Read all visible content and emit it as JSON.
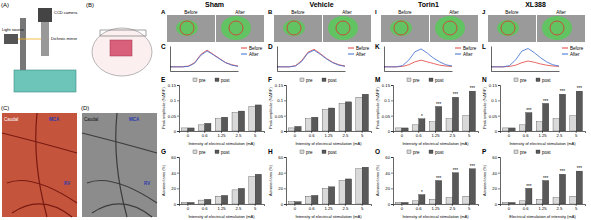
{
  "figure": {
    "setup": {
      "label": "(A)",
      "texts": [
        "CCD camera",
        "Dichroic mirror",
        "Light source"
      ]
    },
    "surgery": {
      "label": "(B)"
    },
    "photo_color": {
      "label": "(C)",
      "texts": [
        "Caudal",
        "MCA",
        "RV"
      ]
    },
    "photo_gray": {
      "label": "(D)",
      "texts": [
        "Caudal",
        "MCA",
        "RV"
      ]
    },
    "groups": [
      {
        "name": "Sham",
        "image_label": "A",
        "before": "Before",
        "after": "After"
      },
      {
        "name": "Vehicle",
        "image_label": "B",
        "before": "Before",
        "after": "After"
      },
      {
        "name": "Torin1",
        "image_label": "I",
        "before": "Before",
        "after": "After"
      },
      {
        "name": "XL388",
        "image_label": "J",
        "before": "Before",
        "after": "After"
      }
    ]
  },
  "chart_data": [
    {
      "type": "line",
      "title": "C",
      "x": [
        0,
        1,
        2,
        3,
        4,
        5,
        6,
        7,
        8,
        9,
        10,
        11
      ],
      "xlim": [
        0,
        11
      ],
      "ylim": [
        -1,
        5
      ],
      "tick_labels": false,
      "series": [
        {
          "name": "Before",
          "color": "#e0413c",
          "values": [
            0,
            0,
            0,
            0.2,
            1,
            3,
            4,
            3,
            2,
            1,
            0.5,
            0.2
          ]
        },
        {
          "name": "After",
          "color": "#3b6bd1",
          "values": [
            0,
            0,
            0,
            0.1,
            0.9,
            2.8,
            3.8,
            2.9,
            1.9,
            1,
            0.4,
            0.1
          ]
        }
      ]
    },
    {
      "type": "line",
      "title": "D",
      "x": [
        0,
        1,
        2,
        3,
        4,
        5,
        6,
        7,
        8,
        9,
        10,
        11
      ],
      "xlim": [
        0,
        11
      ],
      "ylim": [
        -1,
        5
      ],
      "tick_labels": false,
      "series": [
        {
          "name": "Before",
          "color": "#e0413c",
          "values": [
            0,
            0,
            0,
            0.3,
            1.5,
            3.5,
            4.2,
            3.2,
            2,
            1.1,
            0.5,
            0.2
          ]
        },
        {
          "name": "After",
          "color": "#3b6bd1",
          "values": [
            0,
            0,
            0,
            0.2,
            1.3,
            3.3,
            4,
            3,
            1.9,
            1,
            0.4,
            0.1
          ]
        }
      ]
    },
    {
      "type": "line",
      "title": "K",
      "x": [
        0,
        1,
        2,
        3,
        4,
        5,
        6,
        7,
        8,
        9,
        10,
        11
      ],
      "xlim": [
        0,
        11
      ],
      "ylim": [
        -1,
        5
      ],
      "tick_labels": false,
      "series": [
        {
          "name": "Before",
          "color": "#e0413c",
          "values": [
            0,
            0,
            0,
            0.1,
            0.5,
            1.2,
            1.6,
            1.2,
            0.8,
            0.4,
            0.2,
            0.1
          ]
        },
        {
          "name": "After",
          "color": "#3b6bd1",
          "values": [
            0,
            0,
            0,
            0.3,
            1.6,
            3.6,
            4.3,
            3.3,
            2.1,
            1.2,
            0.5,
            0.2
          ]
        }
      ]
    },
    {
      "type": "line",
      "title": "L",
      "x": [
        0,
        1,
        2,
        3,
        4,
        5,
        6,
        7,
        8,
        9,
        10,
        11
      ],
      "xlim": [
        0,
        11
      ],
      "ylim": [
        -1,
        5
      ],
      "tick_labels": false,
      "series": [
        {
          "name": "Before",
          "color": "#e0413c",
          "values": [
            0,
            0,
            0,
            0.1,
            0.4,
            1,
            1.4,
            1.1,
            0.7,
            0.4,
            0.2,
            0.1
          ]
        },
        {
          "name": "After",
          "color": "#3b6bd1",
          "values": [
            0,
            0,
            0,
            0.3,
            1.7,
            3.8,
            4.4,
            3.4,
            2.2,
            1.2,
            0.5,
            0.2
          ]
        }
      ]
    },
    {
      "type": "bar",
      "title": "E",
      "categories": [
        "0",
        "0.6",
        "1.25",
        "2.5",
        "5"
      ],
      "x_label": "Intensity of electrical stimulation (mA)",
      "y_label": "Peak amplitude (%ΔF/F)",
      "ylim": [
        0,
        0.15
      ],
      "yticks": [
        0,
        0.05,
        0.1,
        0.15
      ],
      "legend": "top",
      "series": [
        {
          "name": "pre",
          "color": "#d9d9d9",
          "values": [
            0.01,
            0.02,
            0.04,
            0.06,
            0.08
          ]
        },
        {
          "name": "post",
          "color": "#595959",
          "values": [
            0.01,
            0.025,
            0.045,
            0.065,
            0.085
          ]
        }
      ]
    },
    {
      "type": "bar",
      "title": "F",
      "categories": [
        "0",
        "0.6",
        "1.25",
        "2.5",
        "5"
      ],
      "x_label": "Intensity of electrical stimulation (mA)",
      "y_label": "Peak amplitude (%ΔF/F)",
      "ylim": [
        0,
        0.15
      ],
      "yticks": [
        0,
        0.05,
        0.1,
        0.15
      ],
      "legend": "top",
      "series": [
        {
          "name": "pre",
          "color": "#d9d9d9",
          "values": [
            0.01,
            0.04,
            0.07,
            0.09,
            0.11
          ]
        },
        {
          "name": "post",
          "color": "#595959",
          "values": [
            0.015,
            0.045,
            0.075,
            0.095,
            0.12
          ]
        }
      ]
    },
    {
      "type": "bar",
      "title": "M",
      "categories": [
        "0",
        "0.6",
        "1.25",
        "2.5",
        "5"
      ],
      "x_label": "Intensity of electrical stimulation (mA)",
      "y_label": "Peak amplitude (%ΔF/F)",
      "ylim": [
        0,
        0.15
      ],
      "yticks": [
        0,
        0.05,
        0.1,
        0.15
      ],
      "legend": "top",
      "significance": [
        null,
        "*",
        "***",
        "***",
        "***"
      ],
      "series": [
        {
          "name": "pre",
          "color": "#d9d9d9",
          "values": [
            0.01,
            0.02,
            0.03,
            0.04,
            0.05
          ]
        },
        {
          "name": "post",
          "color": "#595959",
          "values": [
            0.01,
            0.04,
            0.08,
            0.11,
            0.13
          ]
        }
      ]
    },
    {
      "type": "bar",
      "title": "N",
      "categories": [
        "0",
        "0.6",
        "1.25",
        "2.5",
        "5"
      ],
      "x_label": "Intensity of electrical stimulation (mA)",
      "y_label": "Peak amplitude (%ΔF/F)",
      "ylim": [
        0,
        0.15
      ],
      "yticks": [
        0,
        0.05,
        0.1,
        0.15
      ],
      "legend": "top",
      "significance": [
        null,
        "***",
        "***",
        "***",
        "***"
      ],
      "series": [
        {
          "name": "pre",
          "color": "#d9d9d9",
          "values": [
            0.01,
            0.02,
            0.03,
            0.04,
            0.05
          ]
        },
        {
          "name": "post",
          "color": "#595959",
          "values": [
            0.01,
            0.06,
            0.09,
            0.12,
            0.13
          ]
        }
      ]
    },
    {
      "type": "bar",
      "title": "G",
      "categories": [
        "0",
        "0.6",
        "1.25",
        "2.5",
        "5"
      ],
      "x_label": "Intensity of electrical stimulation (mA)",
      "y_label": "Activated area (%)",
      "ylim": [
        0,
        60
      ],
      "yticks": [
        0,
        20,
        40,
        60
      ],
      "legend": "top",
      "series": [
        {
          "name": "pre",
          "color": "#d9d9d9",
          "values": [
            2,
            5,
            10,
            18,
            35
          ]
        },
        {
          "name": "post",
          "color": "#595959",
          "values": [
            2,
            6,
            11,
            20,
            38
          ]
        }
      ]
    },
    {
      "type": "bar",
      "title": "H",
      "categories": [
        "0",
        "0.6",
        "1.25",
        "2.5",
        "5"
      ],
      "x_label": "Intensity of electrical stimulation (mA)",
      "y_label": "Activated area (%)",
      "ylim": [
        0,
        60
      ],
      "yticks": [
        0,
        20,
        40,
        60
      ],
      "legend": "top",
      "series": [
        {
          "name": "pre",
          "color": "#d9d9d9",
          "values": [
            3,
            10,
            20,
            30,
            45
          ]
        },
        {
          "name": "post",
          "color": "#595959",
          "values": [
            3,
            11,
            22,
            32,
            47
          ]
        }
      ]
    },
    {
      "type": "bar",
      "title": "O",
      "categories": [
        "0",
        "0.6",
        "1.25",
        "2.5",
        "5"
      ],
      "x_label": "Intensity of electrical stimulation (mA)",
      "y_label": "Activated area (%)",
      "ylim": [
        0,
        60
      ],
      "yticks": [
        0,
        20,
        40,
        60
      ],
      "legend": "top",
      "significance": [
        null,
        "*",
        "***",
        "***",
        "***"
      ],
      "series": [
        {
          "name": "pre",
          "color": "#d9d9d9",
          "values": [
            2,
            4,
            6,
            8,
            10
          ]
        },
        {
          "name": "post",
          "color": "#595959",
          "values": [
            2,
            12,
            30,
            40,
            45
          ]
        }
      ]
    },
    {
      "type": "bar",
      "title": "P",
      "categories": [
        "0",
        "0.6",
        "1.25",
        "2.5",
        "5"
      ],
      "x_label": "Electrical stimulation of intensity (mA)",
      "y_label": "Activated area (%)",
      "ylim": [
        0,
        60
      ],
      "yticks": [
        0,
        20,
        40,
        60
      ],
      "legend": "top",
      "significance": [
        null,
        "***",
        "***",
        "***",
        "***"
      ],
      "series": [
        {
          "name": "pre",
          "color": "#d9d9d9",
          "values": [
            2,
            4,
            6,
            8,
            10
          ]
        },
        {
          "name": "post",
          "color": "#595959",
          "values": [
            2,
            20,
            30,
            38,
            42
          ]
        }
      ]
    }
  ]
}
